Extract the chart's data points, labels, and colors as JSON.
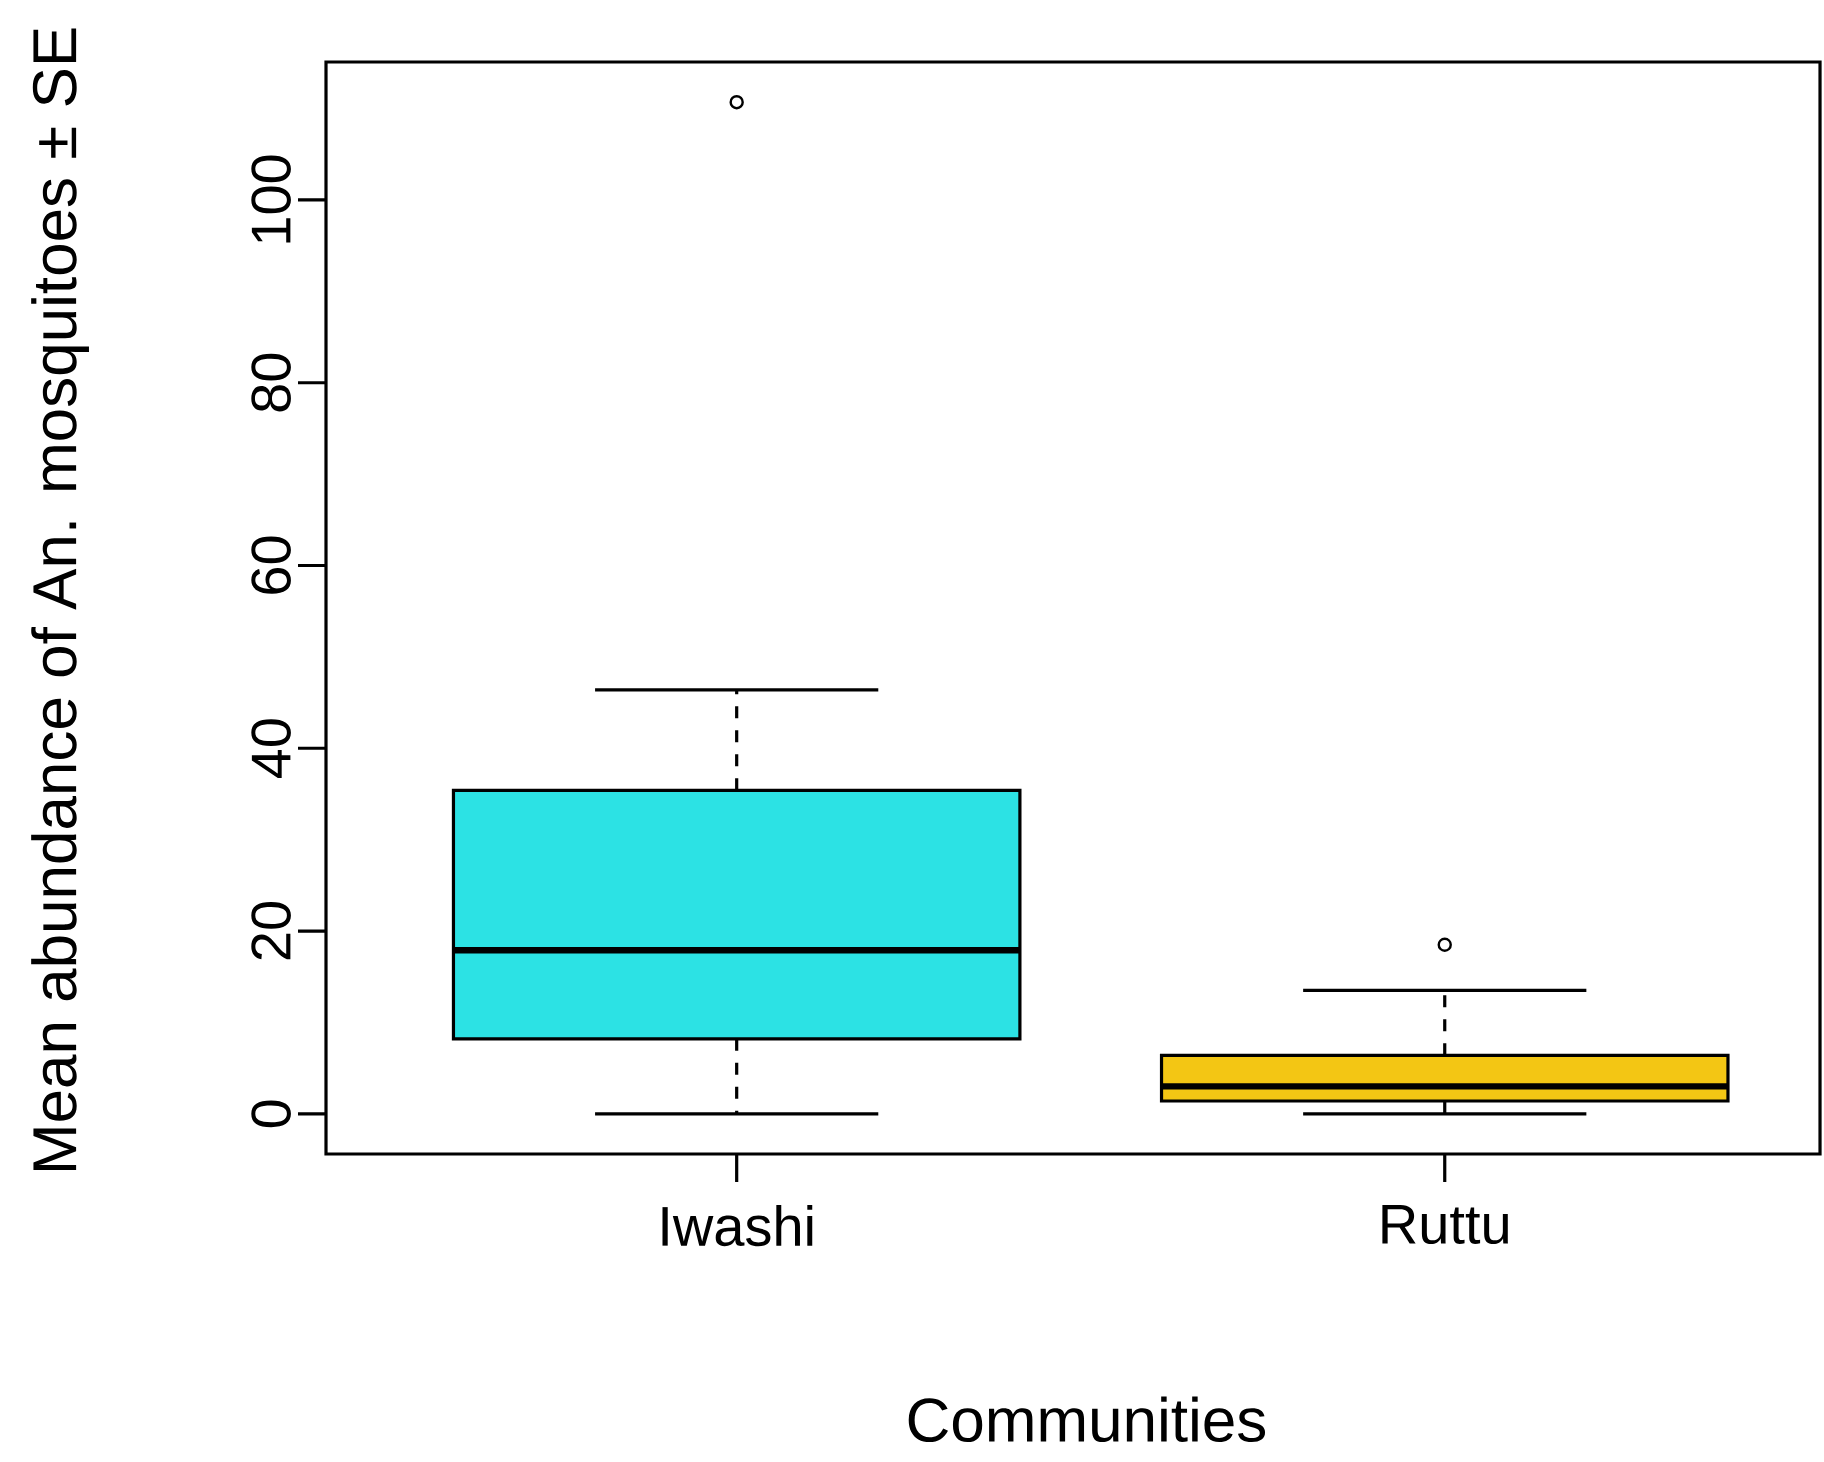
{
  "chart_data": {
    "type": "box",
    "xlabel": "Communities",
    "ylabel": "Mean abundance of An. mosquitoes ± SE",
    "categories": [
      "Iwashi",
      "Ruttu"
    ],
    "colors": [
      "#2ce2e4",
      "#f3c614"
    ],
    "boxes": [
      {
        "low": 0,
        "q1": 8.2,
        "median": 17.9,
        "q3": 35.4,
        "high": 46.4,
        "outliers": [
          110.7
        ]
      },
      {
        "low": 0,
        "q1": 1.4,
        "median": 3.0,
        "q3": 6.4,
        "high": 13.5,
        "outliers": [
          18.5
        ]
      }
    ],
    "ylim": [
      -4.4,
      115.1
    ],
    "yticks": [
      0,
      20,
      40,
      60,
      80,
      100
    ]
  }
}
